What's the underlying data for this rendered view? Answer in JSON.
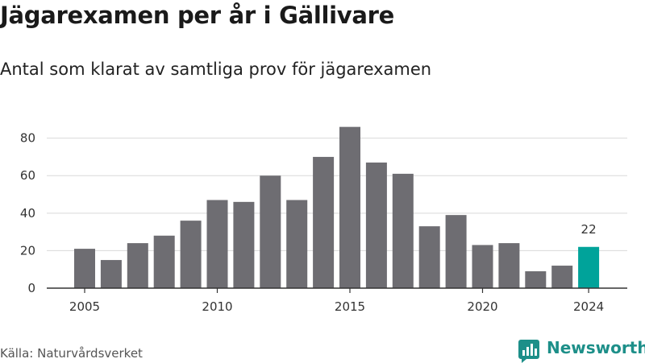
{
  "header": {
    "title": "Jägarexamen per år i Gällivare",
    "subtitle": "Antal som klarat av samtliga prov för jägarexamen"
  },
  "footer": {
    "source": "Källa: Naturvårdsverket",
    "brand": "Newsworthy",
    "brand_icon": "bar-chart-logo-icon"
  },
  "colors": {
    "bar": "#6e6d72",
    "highlight": "#00a39a",
    "grid": "#d9d9d9",
    "axis": "#333333",
    "brand": "#1d8f89"
  },
  "chart_data": {
    "type": "bar",
    "title": "Jägarexamen per år i Gällivare",
    "subtitle": "Antal som klarat av samtliga prov för jägarexamen",
    "categories": [
      2005,
      2006,
      2007,
      2008,
      2009,
      2010,
      2011,
      2012,
      2013,
      2014,
      2015,
      2016,
      2017,
      2018,
      2019,
      2020,
      2021,
      2022,
      2023,
      2024
    ],
    "values": [
      21,
      15,
      24,
      28,
      36,
      47,
      46,
      60,
      47,
      70,
      86,
      67,
      61,
      33,
      39,
      23,
      24,
      9,
      12,
      22
    ],
    "highlight": {
      "category": 2024,
      "label": "22"
    },
    "x_ticks": [
      2005,
      2010,
      2015,
      2020,
      2024
    ],
    "y_ticks": [
      0,
      20,
      40,
      60,
      80
    ],
    "ylim": [
      0,
      88
    ],
    "xlabel": "",
    "ylabel": "",
    "grid": true,
    "legend": "none"
  }
}
